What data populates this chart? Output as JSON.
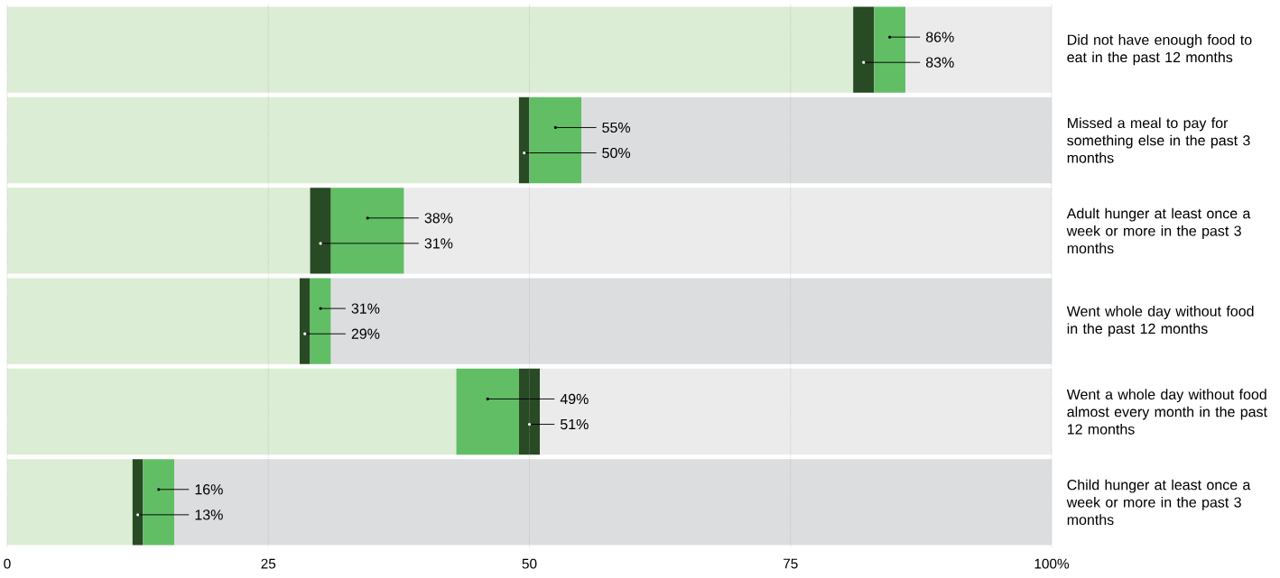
{
  "chart_data": {
    "type": "bar",
    "orientation": "horizontal",
    "categories": [
      "Did not have enough food to eat in the past 12 months",
      "Missed a meal to pay for something else in the past 3 months",
      "Adult hunger at least once a week or more in the past 3 months",
      "Went whole day without food in the past 12 months",
      "Went a whole day without food almost every month in the past 12 months",
      "Child hunger at least once a week or more in the past 3 months"
    ],
    "series": [
      {
        "color": "#dbedd4",
        "values": [
          81,
          49,
          29,
          28,
          43,
          12
        ]
      },
      {
        "colors": [
          "#284a24",
          "#284a24",
          "#284a24",
          "#284a24",
          "#61be65",
          "#284a24"
        ],
        "values": [
          2,
          1,
          2,
          1,
          6,
          1
        ]
      },
      {
        "colors": [
          "#61be65",
          "#61be65",
          "#61be65",
          "#61be65",
          "#284a24",
          "#61be65"
        ],
        "values": [
          3,
          5,
          7,
          2,
          2,
          3
        ]
      },
      {
        "colors": [
          "#ebebeb",
          "#dcdddf",
          "#ebebeb",
          "#dcdddf",
          "#ebebeb",
          "#dcdddf"
        ],
        "values": [
          14,
          45,
          62,
          69,
          49,
          84
        ]
      }
    ],
    "annotations": [
      "86%",
      "83%",
      "55%",
      "50%",
      "38%",
      "31%",
      "31%",
      "29%",
      "49%",
      "51%",
      "16%",
      "13%"
    ],
    "stacked": true,
    "xlim": [
      0,
      100
    ],
    "xticks": [
      0,
      25,
      50,
      75,
      {
        "value": 100,
        "label": "100%"
      }
    ],
    "grid": "x"
  }
}
